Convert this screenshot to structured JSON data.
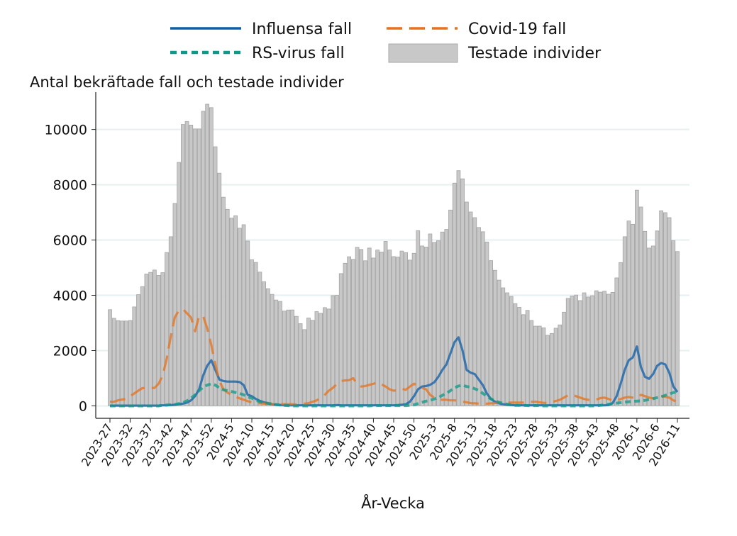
{
  "chart_data": {
    "type": "bar+line",
    "title": "Antal bekräftade fall och testade individer",
    "xlabel": "År-Vecka",
    "ylabel": "",
    "ylim": [
      -450,
      11350
    ],
    "yticks": [
      0,
      2000,
      4000,
      6000,
      8000,
      10000
    ],
    "grid": "horizontal",
    "legend_placement": "top",
    "x_start": "2023-27",
    "x_end": "2026-11",
    "xtick_labels": [
      "2023-27",
      "2023-32",
      "2023-37",
      "2023-42",
      "2023-47",
      "2023-52",
      "2024-5",
      "2024-10",
      "2024-15",
      "2024-20",
      "2024-25",
      "2024-30",
      "2024-35",
      "2024-40",
      "2024-45",
      "2024-50",
      "2025-3",
      "2025-8",
      "2025-13",
      "2025-18",
      "2025-23",
      "2025-28",
      "2025-33",
      "2025-38",
      "2025-43",
      "2025-48",
      "2026-1",
      "2026-6",
      "2026-11"
    ],
    "series": [
      {
        "name": "Testade individer",
        "kind": "bar",
        "color": "#c8c8c8",
        "values": [
          3480,
          3170,
          3085,
          3070,
          3070,
          3090,
          3580,
          4025,
          4315,
          4770,
          4830,
          4915,
          4720,
          4820,
          5550,
          6120,
          7325,
          8810,
          10180,
          10290,
          10160,
          10020,
          10020,
          10660,
          10915,
          10790,
          9375,
          8420,
          7550,
          7110,
          6795,
          6880,
          6430,
          6555,
          5965,
          5290,
          5190,
          4840,
          4490,
          4240,
          4035,
          3830,
          3780,
          3430,
          3470,
          3470,
          3240,
          2975,
          2760,
          3180,
          3095,
          3410,
          3350,
          3555,
          3505,
          3990,
          4000,
          4785,
          5160,
          5395,
          5300,
          5735,
          5660,
          5250,
          5710,
          5350,
          5640,
          5565,
          5950,
          5640,
          5400,
          5385,
          5600,
          5545,
          5275,
          5520,
          6340,
          5785,
          5745,
          6220,
          5915,
          5975,
          6290,
          6385,
          7085,
          8060,
          8510,
          8215,
          7375,
          7015,
          6810,
          6455,
          6300,
          5930,
          5255,
          4905,
          4550,
          4270,
          4090,
          3960,
          3700,
          3565,
          3300,
          3455,
          3090,
          2885,
          2885,
          2825,
          2555,
          2620,
          2810,
          2930,
          3390,
          3890,
          3975,
          4010,
          3810,
          4090,
          3940,
          3985,
          4165,
          4115,
          4150,
          4040,
          4105,
          4630,
          5185,
          6120,
          6690,
          6570,
          7805,
          7195,
          6315,
          5710,
          5785,
          6330,
          7060,
          6990,
          6810,
          5975,
          5585
        ]
      },
      {
        "name": "Influensa fall",
        "kind": "line",
        "style": "solid",
        "color": "#0f5fa8",
        "values": [
          10,
          10,
          10,
          10,
          10,
          10,
          10,
          10,
          10,
          10,
          10,
          10,
          10,
          20,
          20,
          30,
          40,
          60,
          80,
          120,
          200,
          350,
          600,
          1100,
          1450,
          1650,
          1300,
          950,
          900,
          880,
          880,
          880,
          860,
          750,
          400,
          350,
          250,
          180,
          130,
          90,
          60,
          40,
          30,
          20,
          20,
          20,
          20,
          20,
          20,
          20,
          20,
          20,
          20,
          20,
          20,
          20,
          30,
          20,
          20,
          20,
          20,
          20,
          20,
          20,
          20,
          20,
          20,
          20,
          20,
          20,
          20,
          30,
          40,
          60,
          150,
          350,
          600,
          700,
          720,
          760,
          850,
          1050,
          1300,
          1500,
          1900,
          2300,
          2480,
          2000,
          1300,
          1200,
          1150,
          950,
          750,
          450,
          250,
          150,
          90,
          60,
          40,
          30,
          20,
          20,
          20,
          20,
          20,
          20,
          20,
          20,
          20,
          20,
          20,
          20,
          20,
          20,
          20,
          20,
          20,
          20,
          20,
          20,
          20,
          20,
          20,
          30,
          100,
          350,
          800,
          1300,
          1650,
          1750,
          2150,
          1400,
          1050,
          980,
          1150,
          1450,
          1550,
          1500,
          1200,
          700,
          500
        ]
      },
      {
        "name": "Covid-19 fall",
        "kind": "line",
        "style": "dashed",
        "color": "#e8711a",
        "values": [
          150,
          150,
          200,
          230,
          250,
          350,
          450,
          550,
          640,
          650,
          650,
          650,
          800,
          1100,
          1700,
          2500,
          3200,
          3450,
          3500,
          3350,
          3200,
          2700,
          3250,
          3250,
          2800,
          2200,
          1500,
          900,
          600,
          480,
          400,
          330,
          270,
          220,
          170,
          130,
          110,
          90,
          80,
          70,
          60,
          60,
          60,
          60,
          60,
          60,
          50,
          60,
          80,
          100,
          150,
          200,
          280,
          400,
          550,
          650,
          800,
          900,
          920,
          930,
          1000,
          800,
          700,
          720,
          760,
          800,
          850,
          780,
          700,
          600,
          550,
          560,
          620,
          580,
          700,
          800,
          750,
          650,
          600,
          400,
          300,
          250,
          220,
          220,
          200,
          200,
          180,
          150,
          130,
          100,
          90,
          80,
          70,
          80,
          90,
          100,
          120,
          120,
          120,
          120,
          120,
          120,
          120,
          150,
          150,
          150,
          130,
          110,
          100,
          130,
          180,
          220,
          300,
          380,
          400,
          350,
          300,
          250,
          220,
          200,
          230,
          280,
          300,
          250,
          200,
          200,
          250,
          300,
          320,
          300,
          280,
          400,
          350,
          300,
          270,
          300,
          350,
          330,
          300,
          200,
          150
        ]
      },
      {
        "name": "RS-virus fall",
        "kind": "line",
        "style": "dotted",
        "color": "#0e9a88",
        "values": [
          0,
          0,
          0,
          0,
          0,
          0,
          0,
          0,
          0,
          0,
          0,
          0,
          0,
          20,
          30,
          40,
          50,
          80,
          120,
          180,
          280,
          400,
          550,
          680,
          750,
          800,
          750,
          650,
          580,
          550,
          520,
          480,
          450,
          400,
          320,
          280,
          200,
          150,
          120,
          90,
          70,
          50,
          30,
          20,
          10,
          0,
          0,
          0,
          0,
          0,
          0,
          0,
          0,
          0,
          0,
          0,
          0,
          0,
          0,
          0,
          0,
          0,
          0,
          0,
          0,
          10,
          10,
          10,
          10,
          10,
          10,
          10,
          10,
          10,
          20,
          40,
          80,
          130,
          170,
          200,
          250,
          300,
          380,
          450,
          550,
          650,
          720,
          750,
          700,
          680,
          620,
          560,
          450,
          350,
          250,
          180,
          130,
          90,
          60,
          40,
          20,
          20,
          20,
          10,
          10,
          10,
          10,
          0,
          0,
          0,
          0,
          0,
          0,
          0,
          0,
          0,
          0,
          0,
          0,
          0,
          0,
          20,
          40,
          60,
          80,
          100,
          120,
          140,
          150,
          160,
          170,
          180,
          200,
          230,
          260,
          300,
          330,
          380,
          430,
          480,
          500
        ]
      }
    ]
  }
}
